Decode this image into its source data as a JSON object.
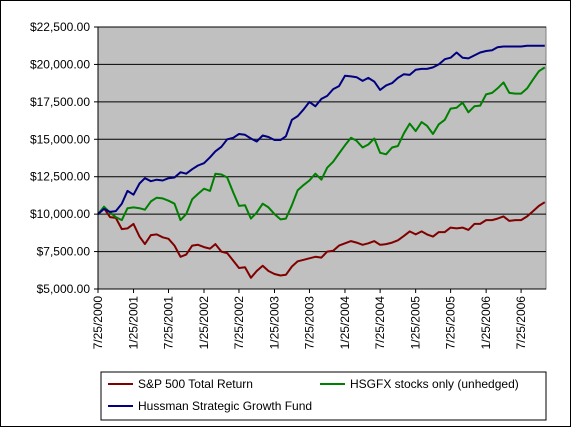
{
  "chart_data": {
    "type": "line",
    "y_axis": {
      "min": 5000,
      "max": 22500,
      "step": 2500,
      "tick_labels": [
        "$5,000.00",
        "$7,500.00",
        "$10,000.00",
        "$12,500.00",
        "$15,000.00",
        "$17,500.00",
        "$20,000.00",
        "$22,500.00"
      ]
    },
    "x_axis": {
      "range": [
        "2000-07-25",
        "2006-12-01"
      ],
      "tick_labels": [
        "7/25/2000",
        "1/25/2001",
        "7/25/2001",
        "1/25/2002",
        "7/25/2002",
        "1/25/2003",
        "7/25/2003",
        "1/25/2004",
        "7/25/2004",
        "1/25/2005",
        "7/25/2005",
        "1/25/2006",
        "7/25/2006"
      ],
      "tick_dates": [
        "2000-07-25",
        "2001-01-25",
        "2001-07-25",
        "2002-01-25",
        "2002-07-25",
        "2003-01-25",
        "2003-07-25",
        "2004-01-25",
        "2004-07-25",
        "2005-01-25",
        "2005-07-25",
        "2006-01-25",
        "2006-07-25"
      ]
    },
    "plot_background": "#c0c0c0",
    "grid": {
      "horizontal": true,
      "vertical": false
    },
    "legend_position": "bottom",
    "series": [
      {
        "name": "S&P 500 Total Return",
        "color": "#800000",
        "points": [
          [
            "2000-07-25",
            10000
          ],
          [
            "2000-08-25",
            10400
          ],
          [
            "2000-09-25",
            9800
          ],
          [
            "2000-10-25",
            9750
          ],
          [
            "2000-11-25",
            9000
          ],
          [
            "2000-12-25",
            9050
          ],
          [
            "2001-01-25",
            9350
          ],
          [
            "2001-02-25",
            8500
          ],
          [
            "2001-03-25",
            8000
          ],
          [
            "2001-04-25",
            8600
          ],
          [
            "2001-05-25",
            8650
          ],
          [
            "2001-06-25",
            8450
          ],
          [
            "2001-07-25",
            8350
          ],
          [
            "2001-08-25",
            7900
          ],
          [
            "2001-09-25",
            7150
          ],
          [
            "2001-10-25",
            7300
          ],
          [
            "2001-11-25",
            7900
          ],
          [
            "2001-12-25",
            7950
          ],
          [
            "2002-01-25",
            7800
          ],
          [
            "2002-02-25",
            7700
          ],
          [
            "2002-03-25",
            8000
          ],
          [
            "2002-04-25",
            7500
          ],
          [
            "2002-05-25",
            7400
          ],
          [
            "2002-06-25",
            6900
          ],
          [
            "2002-07-25",
            6400
          ],
          [
            "2002-08-25",
            6450
          ],
          [
            "2002-09-25",
            5750
          ],
          [
            "2002-10-25",
            6200
          ],
          [
            "2002-11-25",
            6550
          ],
          [
            "2002-12-25",
            6200
          ],
          [
            "2003-01-25",
            6000
          ],
          [
            "2003-02-25",
            5900
          ],
          [
            "2003-03-25",
            5950
          ],
          [
            "2003-04-25",
            6500
          ],
          [
            "2003-05-25",
            6850
          ],
          [
            "2003-06-25",
            6950
          ],
          [
            "2003-07-25",
            7050
          ],
          [
            "2003-08-25",
            7150
          ],
          [
            "2003-09-25",
            7100
          ],
          [
            "2003-10-25",
            7500
          ],
          [
            "2003-11-25",
            7550
          ],
          [
            "2003-12-25",
            7900
          ],
          [
            "2004-01-25",
            8050
          ],
          [
            "2004-02-25",
            8200
          ],
          [
            "2004-03-25",
            8100
          ],
          [
            "2004-04-25",
            7950
          ],
          [
            "2004-05-25",
            8050
          ],
          [
            "2004-06-25",
            8200
          ],
          [
            "2004-07-25",
            7950
          ],
          [
            "2004-08-25",
            8000
          ],
          [
            "2004-09-25",
            8100
          ],
          [
            "2004-10-25",
            8250
          ],
          [
            "2004-11-25",
            8550
          ],
          [
            "2004-12-25",
            8850
          ],
          [
            "2005-01-25",
            8650
          ],
          [
            "2005-02-25",
            8850
          ],
          [
            "2005-03-25",
            8650
          ],
          [
            "2005-04-25",
            8500
          ],
          [
            "2005-05-25",
            8800
          ],
          [
            "2005-06-25",
            8800
          ],
          [
            "2005-07-25",
            9100
          ],
          [
            "2005-08-25",
            9050
          ],
          [
            "2005-09-25",
            9100
          ],
          [
            "2005-10-25",
            8950
          ],
          [
            "2005-11-25",
            9350
          ],
          [
            "2005-12-25",
            9350
          ],
          [
            "2006-01-25",
            9600
          ],
          [
            "2006-02-25",
            9600
          ],
          [
            "2006-03-25",
            9700
          ],
          [
            "2006-04-25",
            9850
          ],
          [
            "2006-05-25",
            9550
          ],
          [
            "2006-06-25",
            9600
          ],
          [
            "2006-07-25",
            9600
          ],
          [
            "2006-08-25",
            9850
          ],
          [
            "2006-09-25",
            10200
          ],
          [
            "2006-10-25",
            10550
          ],
          [
            "2006-11-25",
            10800
          ]
        ]
      },
      {
        "name": "HSGFX stocks only (unhedged)",
        "color": "#008000",
        "points": [
          [
            "2000-07-25",
            10000
          ],
          [
            "2000-08-25",
            10500
          ],
          [
            "2000-09-25",
            10100
          ],
          [
            "2000-10-25",
            9800
          ],
          [
            "2000-11-25",
            9600
          ],
          [
            "2000-12-25",
            10400
          ],
          [
            "2001-01-25",
            10450
          ],
          [
            "2001-02-25",
            10400
          ],
          [
            "2001-03-25",
            10300
          ],
          [
            "2001-04-25",
            10850
          ],
          [
            "2001-05-25",
            11100
          ],
          [
            "2001-06-25",
            11050
          ],
          [
            "2001-07-25",
            10900
          ],
          [
            "2001-08-25",
            10700
          ],
          [
            "2001-09-25",
            9600
          ],
          [
            "2001-10-25",
            10000
          ],
          [
            "2001-11-25",
            11000
          ],
          [
            "2001-12-25",
            11350
          ],
          [
            "2002-01-25",
            11700
          ],
          [
            "2002-02-25",
            11550
          ],
          [
            "2002-03-25",
            12700
          ],
          [
            "2002-04-25",
            12650
          ],
          [
            "2002-05-25",
            12450
          ],
          [
            "2002-06-25",
            11450
          ],
          [
            "2002-07-25",
            10550
          ],
          [
            "2002-08-25",
            10600
          ],
          [
            "2002-09-25",
            9700
          ],
          [
            "2002-10-25",
            10100
          ],
          [
            "2002-11-25",
            10700
          ],
          [
            "2002-12-25",
            10450
          ],
          [
            "2003-01-25",
            10000
          ],
          [
            "2003-02-25",
            9650
          ],
          [
            "2003-03-25",
            9700
          ],
          [
            "2003-04-25",
            10600
          ],
          [
            "2003-05-25",
            11600
          ],
          [
            "2003-06-25",
            11950
          ],
          [
            "2003-07-25",
            12250
          ],
          [
            "2003-08-25",
            12700
          ],
          [
            "2003-09-25",
            12300
          ],
          [
            "2003-10-25",
            13100
          ],
          [
            "2003-11-25",
            13500
          ],
          [
            "2003-12-25",
            14050
          ],
          [
            "2004-01-25",
            14600
          ],
          [
            "2004-02-25",
            15100
          ],
          [
            "2004-03-25",
            14900
          ],
          [
            "2004-04-25",
            14450
          ],
          [
            "2004-05-25",
            14650
          ],
          [
            "2004-06-25",
            15050
          ],
          [
            "2004-07-25",
            14100
          ],
          [
            "2004-08-25",
            14000
          ],
          [
            "2004-09-25",
            14450
          ],
          [
            "2004-10-25",
            14550
          ],
          [
            "2004-11-25",
            15400
          ],
          [
            "2004-12-25",
            16050
          ],
          [
            "2005-01-25",
            15550
          ],
          [
            "2005-02-25",
            16150
          ],
          [
            "2005-03-25",
            15900
          ],
          [
            "2005-04-25",
            15350
          ],
          [
            "2005-05-25",
            16000
          ],
          [
            "2005-06-25",
            16300
          ],
          [
            "2005-07-25",
            17050
          ],
          [
            "2005-08-25",
            17100
          ],
          [
            "2005-09-25",
            17450
          ],
          [
            "2005-10-25",
            16800
          ],
          [
            "2005-11-25",
            17200
          ],
          [
            "2005-12-25",
            17250
          ],
          [
            "2006-01-25",
            18000
          ],
          [
            "2006-02-25",
            18100
          ],
          [
            "2006-03-25",
            18400
          ],
          [
            "2006-04-25",
            18800
          ],
          [
            "2006-05-25",
            18100
          ],
          [
            "2006-06-25",
            18050
          ],
          [
            "2006-07-25",
            18050
          ],
          [
            "2006-08-25",
            18400
          ],
          [
            "2006-09-25",
            19000
          ],
          [
            "2006-10-25",
            19550
          ],
          [
            "2006-11-25",
            19800
          ]
        ]
      },
      {
        "name": "Hussman Strategic Growth Fund",
        "color": "#000080",
        "points": [
          [
            "2000-07-25",
            10000
          ],
          [
            "2000-08-25",
            10350
          ],
          [
            "2000-09-25",
            10150
          ],
          [
            "2000-10-25",
            10200
          ],
          [
            "2000-11-25",
            10700
          ],
          [
            "2000-12-25",
            11550
          ],
          [
            "2001-01-25",
            11300
          ],
          [
            "2001-02-25",
            12050
          ],
          [
            "2001-03-25",
            12400
          ],
          [
            "2001-04-25",
            12200
          ],
          [
            "2001-05-25",
            12300
          ],
          [
            "2001-06-25",
            12250
          ],
          [
            "2001-07-25",
            12400
          ],
          [
            "2001-08-25",
            12450
          ],
          [
            "2001-09-25",
            12800
          ],
          [
            "2001-10-25",
            12700
          ],
          [
            "2001-11-25",
            13000
          ],
          [
            "2001-12-25",
            13250
          ],
          [
            "2002-01-25",
            13400
          ],
          [
            "2002-02-25",
            13800
          ],
          [
            "2002-03-25",
            14200
          ],
          [
            "2002-04-25",
            14500
          ],
          [
            "2002-05-25",
            15000
          ],
          [
            "2002-06-25",
            15100
          ],
          [
            "2002-07-25",
            15350
          ],
          [
            "2002-08-25",
            15300
          ],
          [
            "2002-09-25",
            15050
          ],
          [
            "2002-10-25",
            14850
          ],
          [
            "2002-11-25",
            15250
          ],
          [
            "2002-12-25",
            15150
          ],
          [
            "2003-01-25",
            14950
          ],
          [
            "2003-02-25",
            14950
          ],
          [
            "2003-03-25",
            15200
          ],
          [
            "2003-04-25",
            16300
          ],
          [
            "2003-05-25",
            16550
          ],
          [
            "2003-06-25",
            17000
          ],
          [
            "2003-07-25",
            17500
          ],
          [
            "2003-08-25",
            17200
          ],
          [
            "2003-09-25",
            17700
          ],
          [
            "2003-10-25",
            17900
          ],
          [
            "2003-11-25",
            18350
          ],
          [
            "2003-12-25",
            18550
          ],
          [
            "2004-01-25",
            19250
          ],
          [
            "2004-02-25",
            19200
          ],
          [
            "2004-03-25",
            19150
          ],
          [
            "2004-04-25",
            18900
          ],
          [
            "2004-05-25",
            19100
          ],
          [
            "2004-06-25",
            18850
          ],
          [
            "2004-07-25",
            18300
          ],
          [
            "2004-08-25",
            18600
          ],
          [
            "2004-09-25",
            18750
          ],
          [
            "2004-10-25",
            19100
          ],
          [
            "2004-11-25",
            19350
          ],
          [
            "2004-12-25",
            19300
          ],
          [
            "2005-01-25",
            19650
          ],
          [
            "2005-02-25",
            19700
          ],
          [
            "2005-03-25",
            19700
          ],
          [
            "2005-04-25",
            19800
          ],
          [
            "2005-05-25",
            20000
          ],
          [
            "2005-06-25",
            20350
          ],
          [
            "2005-07-25",
            20450
          ],
          [
            "2005-08-25",
            20800
          ],
          [
            "2005-09-25",
            20450
          ],
          [
            "2005-10-25",
            20400
          ],
          [
            "2005-11-25",
            20600
          ],
          [
            "2005-12-25",
            20800
          ],
          [
            "2006-01-25",
            20900
          ],
          [
            "2006-02-25",
            20950
          ],
          [
            "2006-03-25",
            21150
          ],
          [
            "2006-04-25",
            21200
          ],
          [
            "2006-05-25",
            21200
          ],
          [
            "2006-06-25",
            21200
          ],
          [
            "2006-07-25",
            21200
          ],
          [
            "2006-08-25",
            21250
          ],
          [
            "2006-09-25",
            21250
          ],
          [
            "2006-10-25",
            21250
          ],
          [
            "2006-11-25",
            21250
          ]
        ]
      }
    ]
  }
}
